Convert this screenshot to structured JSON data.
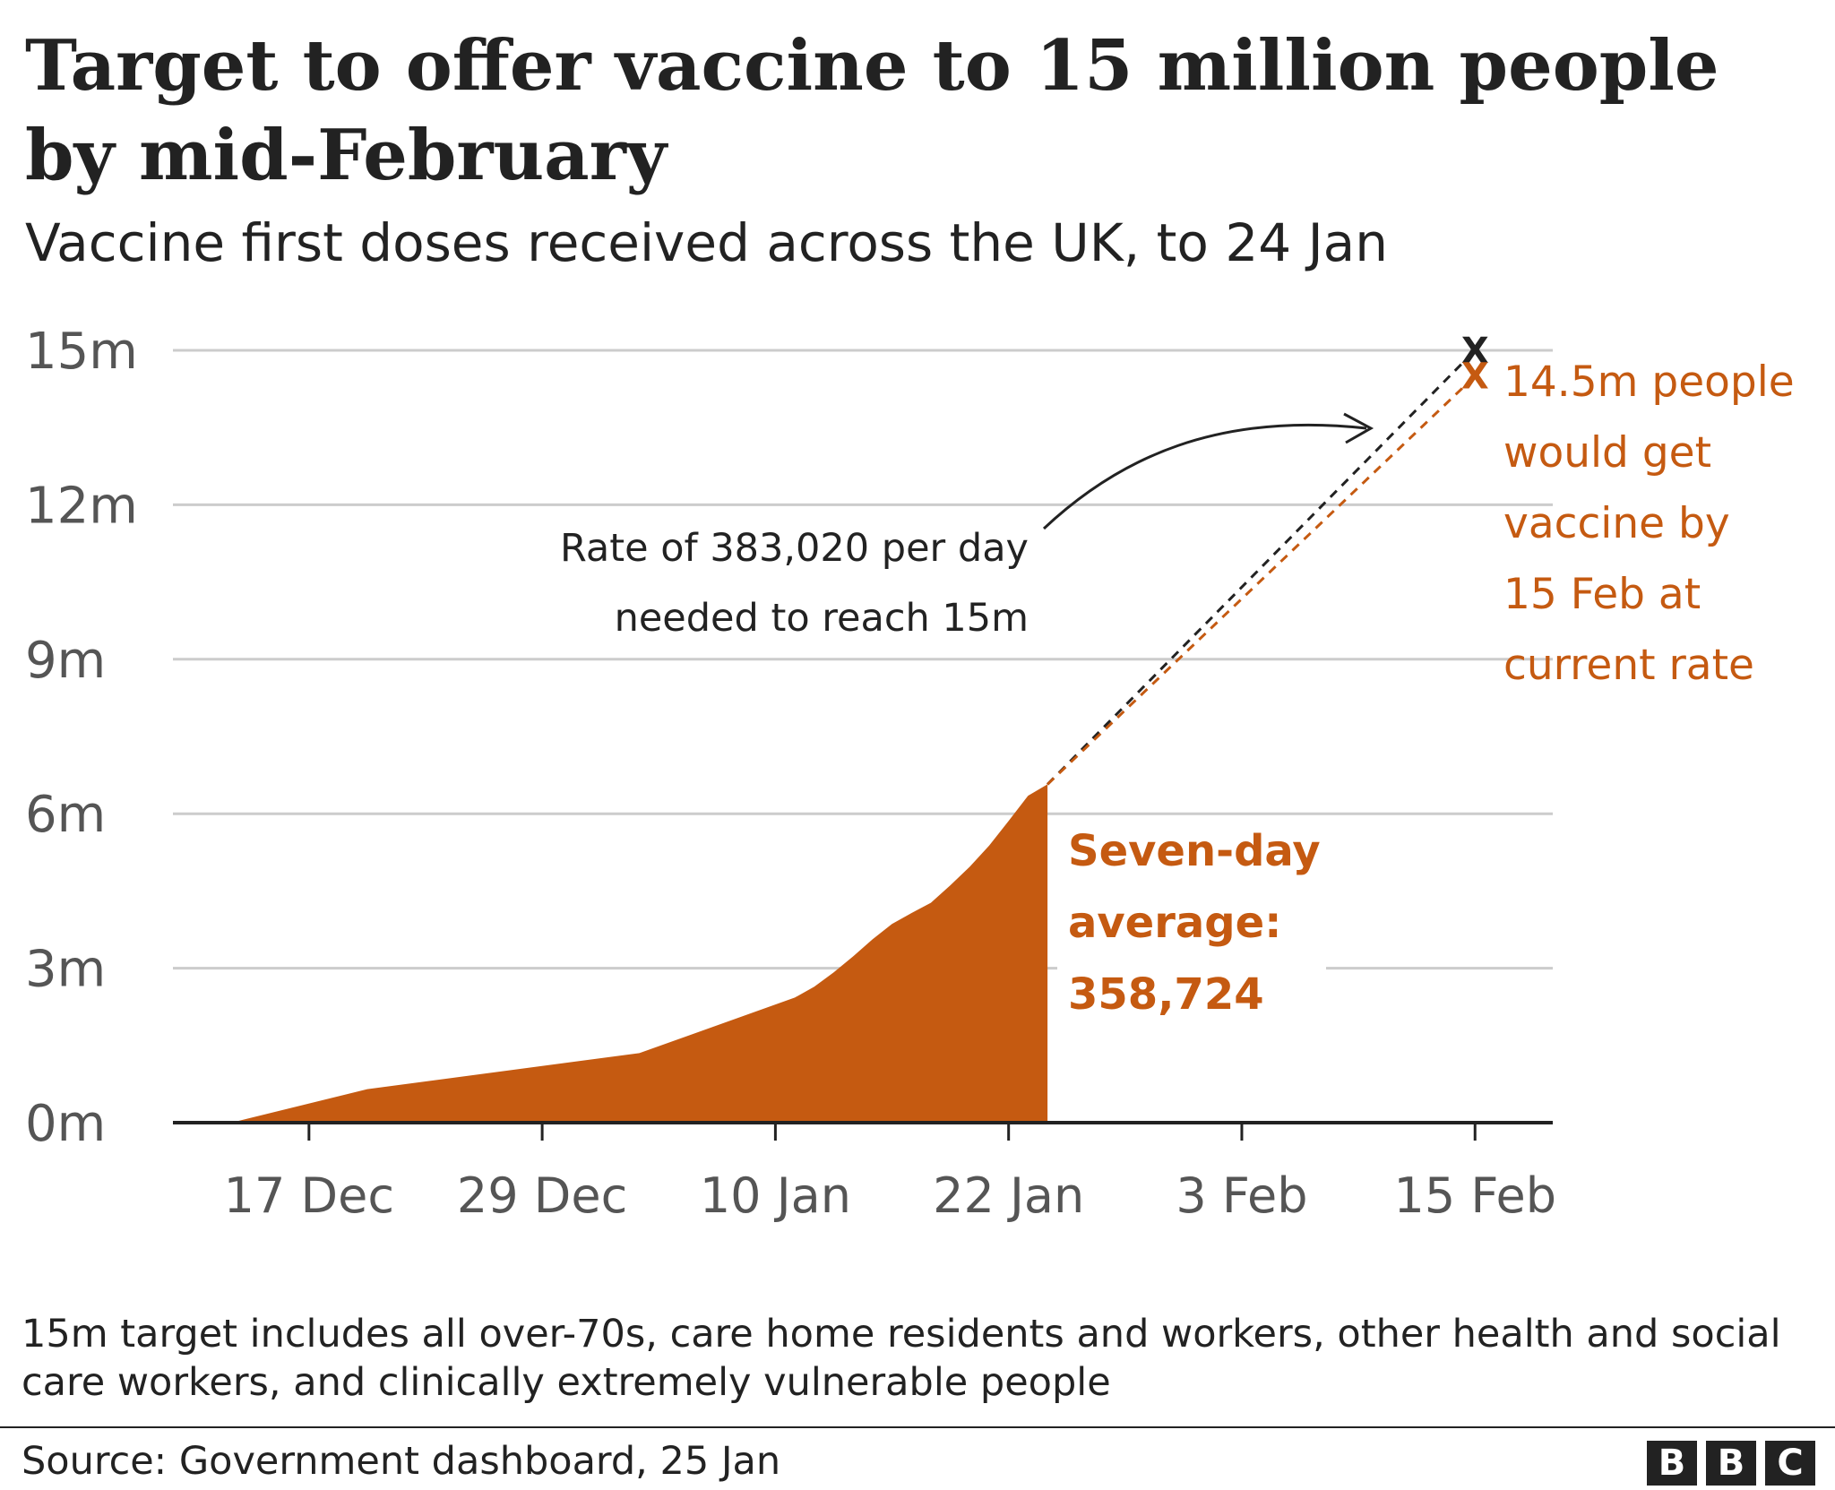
{
  "header": {
    "title": "Target to offer vaccine to 15 million people by mid-February",
    "subtitle": "Vaccine first doses received across the UK, to 24 Jan"
  },
  "colors": {
    "area": "#c55a11",
    "projection": "#c55a11",
    "target": "#222222",
    "grid": "#cccccc",
    "text": "#222222"
  },
  "chart_data": {
    "type": "area",
    "y_tick_labels": [
      "0m",
      "3m",
      "6m",
      "9m",
      "12m",
      "15m"
    ],
    "y_tick_values": [
      0,
      3,
      6,
      9,
      12,
      15
    ],
    "ylim": [
      0,
      15
    ],
    "x_tick_labels": [
      "17 Dec",
      "29 Dec",
      "10 Jan",
      "22 Jan",
      "3 Feb",
      "15 Feb"
    ],
    "x_tick_values": [
      "2020-12-17",
      "2020-12-29",
      "2021-01-10",
      "2021-01-22",
      "2021-02-03",
      "2021-02-15"
    ],
    "xlim": [
      "2020-12-10",
      "2021-02-19"
    ],
    "grid": true,
    "series": [
      {
        "values_in": "millions",
        "points": [
          {
            "x": "2020-12-13",
            "y": 0.0
          },
          {
            "x": "2020-12-20",
            "y": 0.65
          },
          {
            "x": "2021-01-03",
            "y": 1.35
          },
          {
            "x": "2021-01-11",
            "y": 2.43
          },
          {
            "x": "2021-01-12",
            "y": 2.64
          },
          {
            "x": "2021-01-13",
            "y": 2.92
          },
          {
            "x": "2021-01-14",
            "y": 3.23
          },
          {
            "x": "2021-01-15",
            "y": 3.56
          },
          {
            "x": "2021-01-16",
            "y": 3.86
          },
          {
            "x": "2021-01-17",
            "y": 4.07
          },
          {
            "x": "2021-01-18",
            "y": 4.27
          },
          {
            "x": "2021-01-19",
            "y": 4.61
          },
          {
            "x": "2021-01-20",
            "y": 4.97
          },
          {
            "x": "2021-01-21",
            "y": 5.38
          },
          {
            "x": "2021-01-22",
            "y": 5.86
          },
          {
            "x": "2021-01-23",
            "y": 6.35
          },
          {
            "x": "2021-01-24",
            "y": 6.57
          }
        ]
      }
    ],
    "projections": [
      {
        "label": "target",
        "from": {
          "x": "2021-01-24",
          "y": 6.57
        },
        "to": {
          "x": "2021-02-15",
          "y": 15.0
        },
        "marker": "X",
        "color": "#222222"
      },
      {
        "label": "current rate",
        "from": {
          "x": "2021-01-24",
          "y": 6.57
        },
        "to": {
          "x": "2021-02-15",
          "y": 14.5
        },
        "marker": "X",
        "color": "#c55a11"
      }
    ],
    "annotations": {
      "rate_lines": [
        "Rate of 383,020 per day",
        "needed to reach 15m"
      ],
      "projection_lines": [
        "14.5m people",
        "would get",
        "vaccine by",
        "15 Feb at",
        "current rate"
      ],
      "average_lines": [
        "Seven-day",
        "average:",
        "358,724"
      ]
    }
  },
  "footnote": "15m target includes all over-70s, care home residents and workers, other health and social care workers, and clinically extremely vulnerable people",
  "source": "Source: Government dashboard, 25 Jan",
  "logo": [
    "B",
    "B",
    "C"
  ]
}
